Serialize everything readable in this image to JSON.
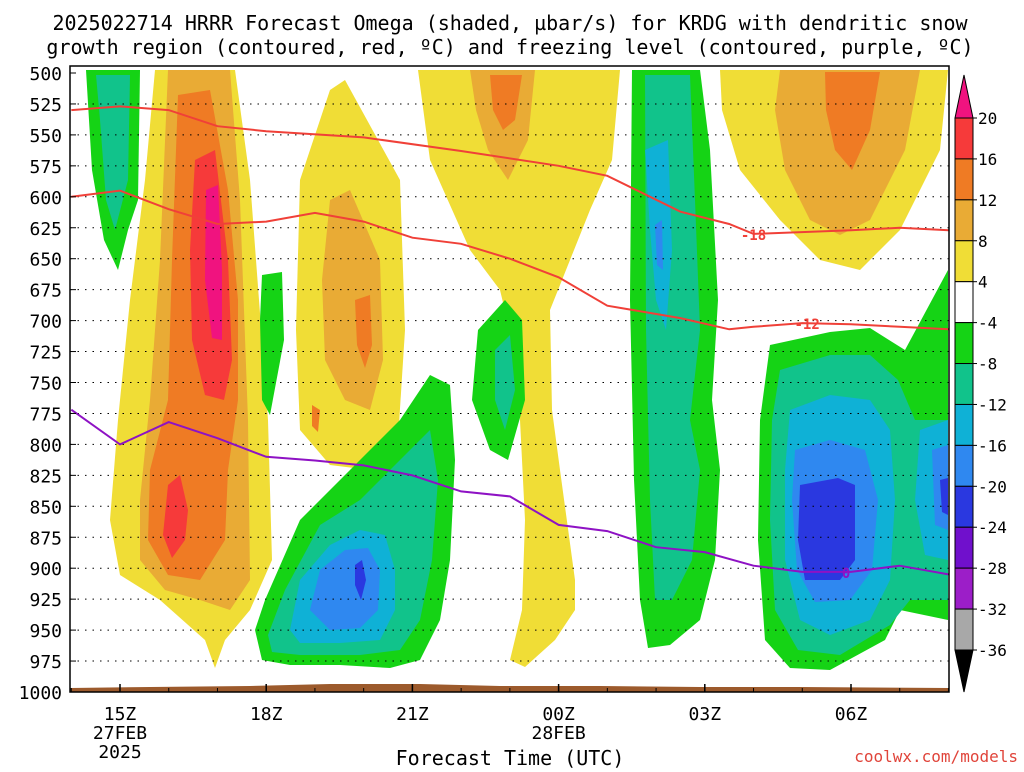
{
  "chart_data": {
    "type": "heatmap",
    "title_line1": "2025022714 HRRR Forecast Omega (shaded, µbar/s) for KRDG with dendritic snow",
    "title_line2": "growth region (contoured, red, ºC) and freezing level (contoured, purple, ºC)",
    "xlabel": "Forecast Time (UTC)",
    "credit": "coolwx.com/models",
    "y_ticks": [
      500,
      525,
      550,
      575,
      600,
      625,
      650,
      675,
      700,
      725,
      750,
      775,
      800,
      825,
      850,
      875,
      900,
      925,
      950,
      975,
      1000
    ],
    "ylim": [
      500,
      1000
    ],
    "x_ticks": [
      {
        "hour": 15,
        "label": "15Z",
        "sub1": "27FEB",
        "sub2": "2025"
      },
      {
        "hour": 18,
        "label": "18Z",
        "sub1": "",
        "sub2": ""
      },
      {
        "hour": 21,
        "label": "21Z",
        "sub1": "",
        "sub2": ""
      },
      {
        "hour": 24,
        "label": "00Z",
        "sub1": "28FEB",
        "sub2": ""
      },
      {
        "hour": 27,
        "label": "03Z",
        "sub1": "",
        "sub2": ""
      },
      {
        "hour": 30,
        "label": "06Z",
        "sub1": "",
        "sub2": ""
      }
    ],
    "xlim": [
      14,
      32
    ],
    "colorbar": {
      "labels": [
        "20",
        "16",
        "12",
        "8",
        "4",
        "-4",
        "-8",
        "-12",
        "-16",
        "-20",
        "-24",
        "-28",
        "-32",
        "-36"
      ],
      "colors": [
        "#f0137f",
        "#f63a3a",
        "#ef7b24",
        "#e9ab35",
        "#f0dd36",
        "#ffffff",
        "#15d315",
        "#11c38b",
        "#0fb1d6",
        "#2f88f0",
        "#2a38e0",
        "#7010cc",
        "#9c1ec8",
        "#a8a8a8",
        "#000000"
      ]
    },
    "omega_regions": [
      {
        "value_band": "-4 to -12",
        "color": "#15d315",
        "hour_center": 20.7,
        "pressure_center": 850
      },
      {
        "value_band": "-16 to -20",
        "color": "#2f88f0",
        "hour_center": 20.7,
        "pressure_center": 880
      },
      {
        "value_band": "-20 to -24",
        "color": "#2a38e0",
        "hour_center": 30.0,
        "pressure_center": 830
      },
      {
        "value_band": "12 to 20",
        "color": "#f0137f",
        "hour_center": 16.9,
        "pressure_center": 640
      },
      {
        "value_band": "12 to 16",
        "color": "#f63a3a",
        "hour_center": 16.2,
        "pressure_center": 825
      }
    ],
    "contours": [
      {
        "name": "-18",
        "color": "#f04038",
        "label": "-18",
        "label_hour": 28.0,
        "label_p": 630,
        "points": [
          [
            14,
            530
          ],
          [
            15,
            527
          ],
          [
            16,
            530
          ],
          [
            17,
            543
          ],
          [
            18,
            547
          ],
          [
            20,
            552
          ],
          [
            22,
            563
          ],
          [
            24,
            575
          ],
          [
            25,
            583
          ],
          [
            26.5,
            612
          ],
          [
            27.5,
            622
          ],
          [
            28,
            630
          ],
          [
            30,
            627
          ],
          [
            31,
            625
          ],
          [
            32,
            627
          ]
        ]
      },
      {
        "name": "-12",
        "color": "#f04038",
        "label": "-12",
        "label_hour": 29.1,
        "label_p": 702,
        "points": [
          [
            14,
            600
          ],
          [
            15,
            595
          ],
          [
            16,
            610
          ],
          [
            17,
            622
          ],
          [
            18,
            620
          ],
          [
            19,
            613
          ],
          [
            20,
            620
          ],
          [
            21,
            633
          ],
          [
            22,
            638
          ],
          [
            23,
            650
          ],
          [
            24,
            665
          ],
          [
            25,
            688
          ],
          [
            26.5,
            698
          ],
          [
            27.5,
            707
          ],
          [
            28,
            705
          ],
          [
            29,
            702
          ],
          [
            30,
            703
          ],
          [
            31,
            705
          ],
          [
            32,
            707
          ]
        ]
      },
      {
        "name": "0",
        "color": "#8e12c4",
        "label": "0",
        "label_hour": 29.9,
        "label_p": 903,
        "points": [
          [
            14,
            772
          ],
          [
            15,
            800
          ],
          [
            16,
            782
          ],
          [
            17,
            795
          ],
          [
            18,
            810
          ],
          [
            19,
            813
          ],
          [
            20,
            817
          ],
          [
            21,
            825
          ],
          [
            22,
            838
          ],
          [
            23,
            842
          ],
          [
            24,
            865
          ],
          [
            25,
            870
          ],
          [
            26,
            883
          ],
          [
            27,
            887
          ],
          [
            28,
            898
          ],
          [
            29,
            903
          ],
          [
            30,
            903
          ],
          [
            31,
            898
          ],
          [
            32,
            905
          ]
        ]
      }
    ]
  }
}
